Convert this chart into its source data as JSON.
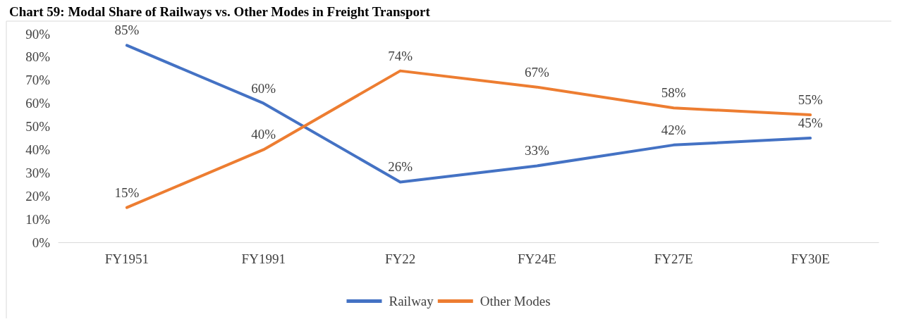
{
  "chart_data": {
    "type": "line",
    "title": "Chart 59: Modal Share of Railways vs. Other Modes in Freight Transport",
    "categories": [
      "FY1951",
      "FY1991",
      "FY22",
      "FY24E",
      "FY27E",
      "FY30E"
    ],
    "series": [
      {
        "name": "Railway",
        "color": "#4472c4",
        "values": [
          85,
          60,
          26,
          33,
          42,
          45
        ],
        "value_labels": [
          "85%",
          "60%",
          "26%",
          "33%",
          "42%",
          "45%"
        ]
      },
      {
        "name": "Other Modes",
        "color": "#ed7d31",
        "values": [
          15,
          40,
          74,
          67,
          58,
          55
        ],
        "value_labels": [
          "15%",
          "40%",
          "74%",
          "67%",
          "58%",
          "55%"
        ]
      }
    ],
    "ylim": [
      0,
      90
    ],
    "yticks": [
      {
        "value": 0,
        "label": "0%"
      },
      {
        "value": 10,
        "label": "10%"
      },
      {
        "value": 20,
        "label": "20%"
      },
      {
        "value": 30,
        "label": "30%"
      },
      {
        "value": 40,
        "label": "40%"
      },
      {
        "value": 50,
        "label": "50%"
      },
      {
        "value": 60,
        "label": "60%"
      },
      {
        "value": 70,
        "label": "70%"
      },
      {
        "value": 80,
        "label": "80%"
      },
      {
        "value": 90,
        "label": "90%"
      }
    ],
    "grid": false,
    "legend": "bottom",
    "marker": "none",
    "line_style": "solid"
  }
}
